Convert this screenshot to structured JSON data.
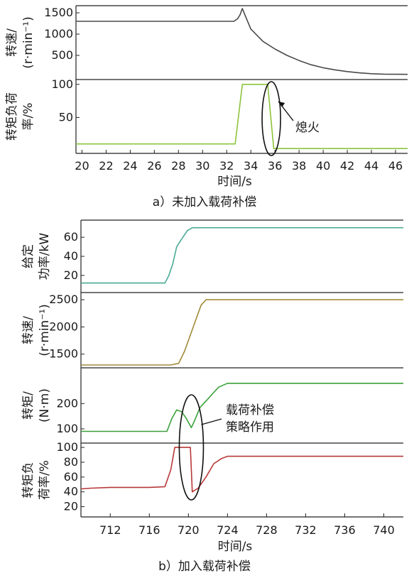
{
  "chart_data": [
    {
      "id": "a",
      "type": "line",
      "caption": "a）未加入载荷补偿",
      "xlabel": "时间/s",
      "xlim": [
        19.5,
        47
      ],
      "xticks": [
        20,
        22,
        24,
        26,
        28,
        30,
        32,
        34,
        36,
        38,
        40,
        42,
        44,
        46
      ],
      "panels": [
        {
          "id": "a-speed",
          "ylabel": [
            "转速/",
            "(r·min⁻¹)"
          ],
          "ylim": [
            0,
            1600
          ],
          "yticks": [
            500,
            1000,
            1500
          ],
          "series": [
            {
              "color": "#4a4a4a",
              "points": [
                [
                  19.5,
                  1300
                ],
                [
                  32.6,
                  1300
                ],
                [
                  32.9,
                  1360
                ],
                [
                  33.1,
                  1450
                ],
                [
                  33.3,
                  1600
                ],
                [
                  33.5,
                  1460
                ],
                [
                  34.0,
                  1120
                ],
                [
                  35.0,
                  830
                ],
                [
                  36.0,
                  650
                ],
                [
                  37.0,
                  500
                ],
                [
                  38.0,
                  380
                ],
                [
                  39.0,
                  280
                ],
                [
                  40.0,
                  210
                ],
                [
                  41.0,
                  160
                ],
                [
                  42.0,
                  120
                ],
                [
                  43.0,
                  90
                ],
                [
                  44.0,
                  70
                ],
                [
                  45.0,
                  60
                ],
                [
                  47.0,
                  55
                ]
              ]
            }
          ]
        },
        {
          "id": "a-torque-load",
          "ylabel": [
            "转矩负荷",
            "率/%"
          ],
          "ylim": [
            0,
            103
          ],
          "yticks": [
            50,
            100
          ],
          "series": [
            {
              "color": "#8cc43c",
              "points": [
                [
                  19.5,
                  10
                ],
                [
                  32.7,
                  10
                ],
                [
                  33.3,
                  100
                ],
                [
                  35.4,
                  100
                ],
                [
                  35.9,
                  3
                ],
                [
                  47.0,
                  3
                ]
              ]
            }
          ]
        }
      ],
      "annotations": [
        "熄火"
      ]
    },
    {
      "id": "b",
      "type": "line",
      "caption": "b）加入载荷补偿",
      "xlabel": "时间/s",
      "xlim": [
        709,
        742
      ],
      "xticks": [
        712,
        716,
        720,
        724,
        728,
        732,
        736,
        740
      ],
      "panels": [
        {
          "id": "b-power",
          "ylabel": [
            "给定",
            "功率/kW"
          ],
          "ylim": [
            5,
            75
          ],
          "yticks": [
            20,
            40,
            60
          ],
          "series": [
            {
              "color": "#4aaa96",
              "points": [
                [
                  709,
                  12
                ],
                [
                  717.6,
                  12
                ],
                [
                  718.0,
                  20
                ],
                [
                  718.4,
                  32
                ],
                [
                  718.8,
                  50
                ],
                [
                  719.3,
                  58
                ],
                [
                  719.9,
                  67
                ],
                [
                  720.4,
                  70
                ],
                [
                  742,
                  70
                ]
              ]
            }
          ]
        },
        {
          "id": "b-speed",
          "ylabel": [
            "转速/",
            "(r·min⁻¹)"
          ],
          "ylim": [
            1300,
            2580
          ],
          "yticks": [
            1500,
            2000,
            2500
          ],
          "series": [
            {
              "color": "#a08a3a",
              "points": [
                [
                  709,
                  1300
                ],
                [
                  718.2,
                  1300
                ],
                [
                  719.0,
                  1330
                ],
                [
                  719.6,
                  1550
                ],
                [
                  720.2,
                  1850
                ],
                [
                  720.8,
                  2150
                ],
                [
                  721.3,
                  2400
                ],
                [
                  721.8,
                  2500
                ],
                [
                  742,
                  2500
                ]
              ]
            }
          ]
        },
        {
          "id": "b-torque",
          "ylabel": [
            "转矩/",
            "(N·m)"
          ],
          "ylim": [
            55,
            330
          ],
          "yticks": [
            100,
            200
          ],
          "series": [
            {
              "color": "#3aa03a",
              "points": [
                [
                  709,
                  90
                ],
                [
                  717.8,
                  90
                ],
                [
                  718.3,
                  140
                ],
                [
                  718.8,
                  175
                ],
                [
                  719.3,
                  168
                ],
                [
                  719.8,
                  140
                ],
                [
                  720.3,
                  105
                ],
                [
                  720.6,
                  130
                ],
                [
                  721.2,
                  185
                ],
                [
                  721.8,
                  210
                ],
                [
                  722.5,
                  240
                ],
                [
                  723.1,
                  265
                ],
                [
                  724.0,
                  280
                ],
                [
                  742,
                  280
                ]
              ]
            }
          ]
        },
        {
          "id": "b-torque-load",
          "ylabel": [
            "转矩负",
            "荷率/%"
          ],
          "ylim": [
            10,
            102
          ],
          "yticks": [
            20,
            40,
            60,
            80,
            100
          ],
          "series": [
            {
              "color": "#b83838",
              "points": [
                [
                  709,
                  44
                ],
                [
                  710,
                  45
                ],
                [
                  712,
                  46
                ],
                [
                  714,
                  46
                ],
                [
                  716,
                  46
                ],
                [
                  717.6,
                  47
                ],
                [
                  718.2,
                  70
                ],
                [
                  718.6,
                  100
                ],
                [
                  720.2,
                  100
                ],
                [
                  720.4,
                  40
                ],
                [
                  721.0,
                  45
                ],
                [
                  721.8,
                  60
                ],
                [
                  722.6,
                  78
                ],
                [
                  723.4,
                  85
                ],
                [
                  724.0,
                  88
                ],
                [
                  742,
                  88
                ]
              ]
            }
          ]
        }
      ],
      "annotations": [
        "载荷补偿",
        "策略作用"
      ]
    }
  ]
}
